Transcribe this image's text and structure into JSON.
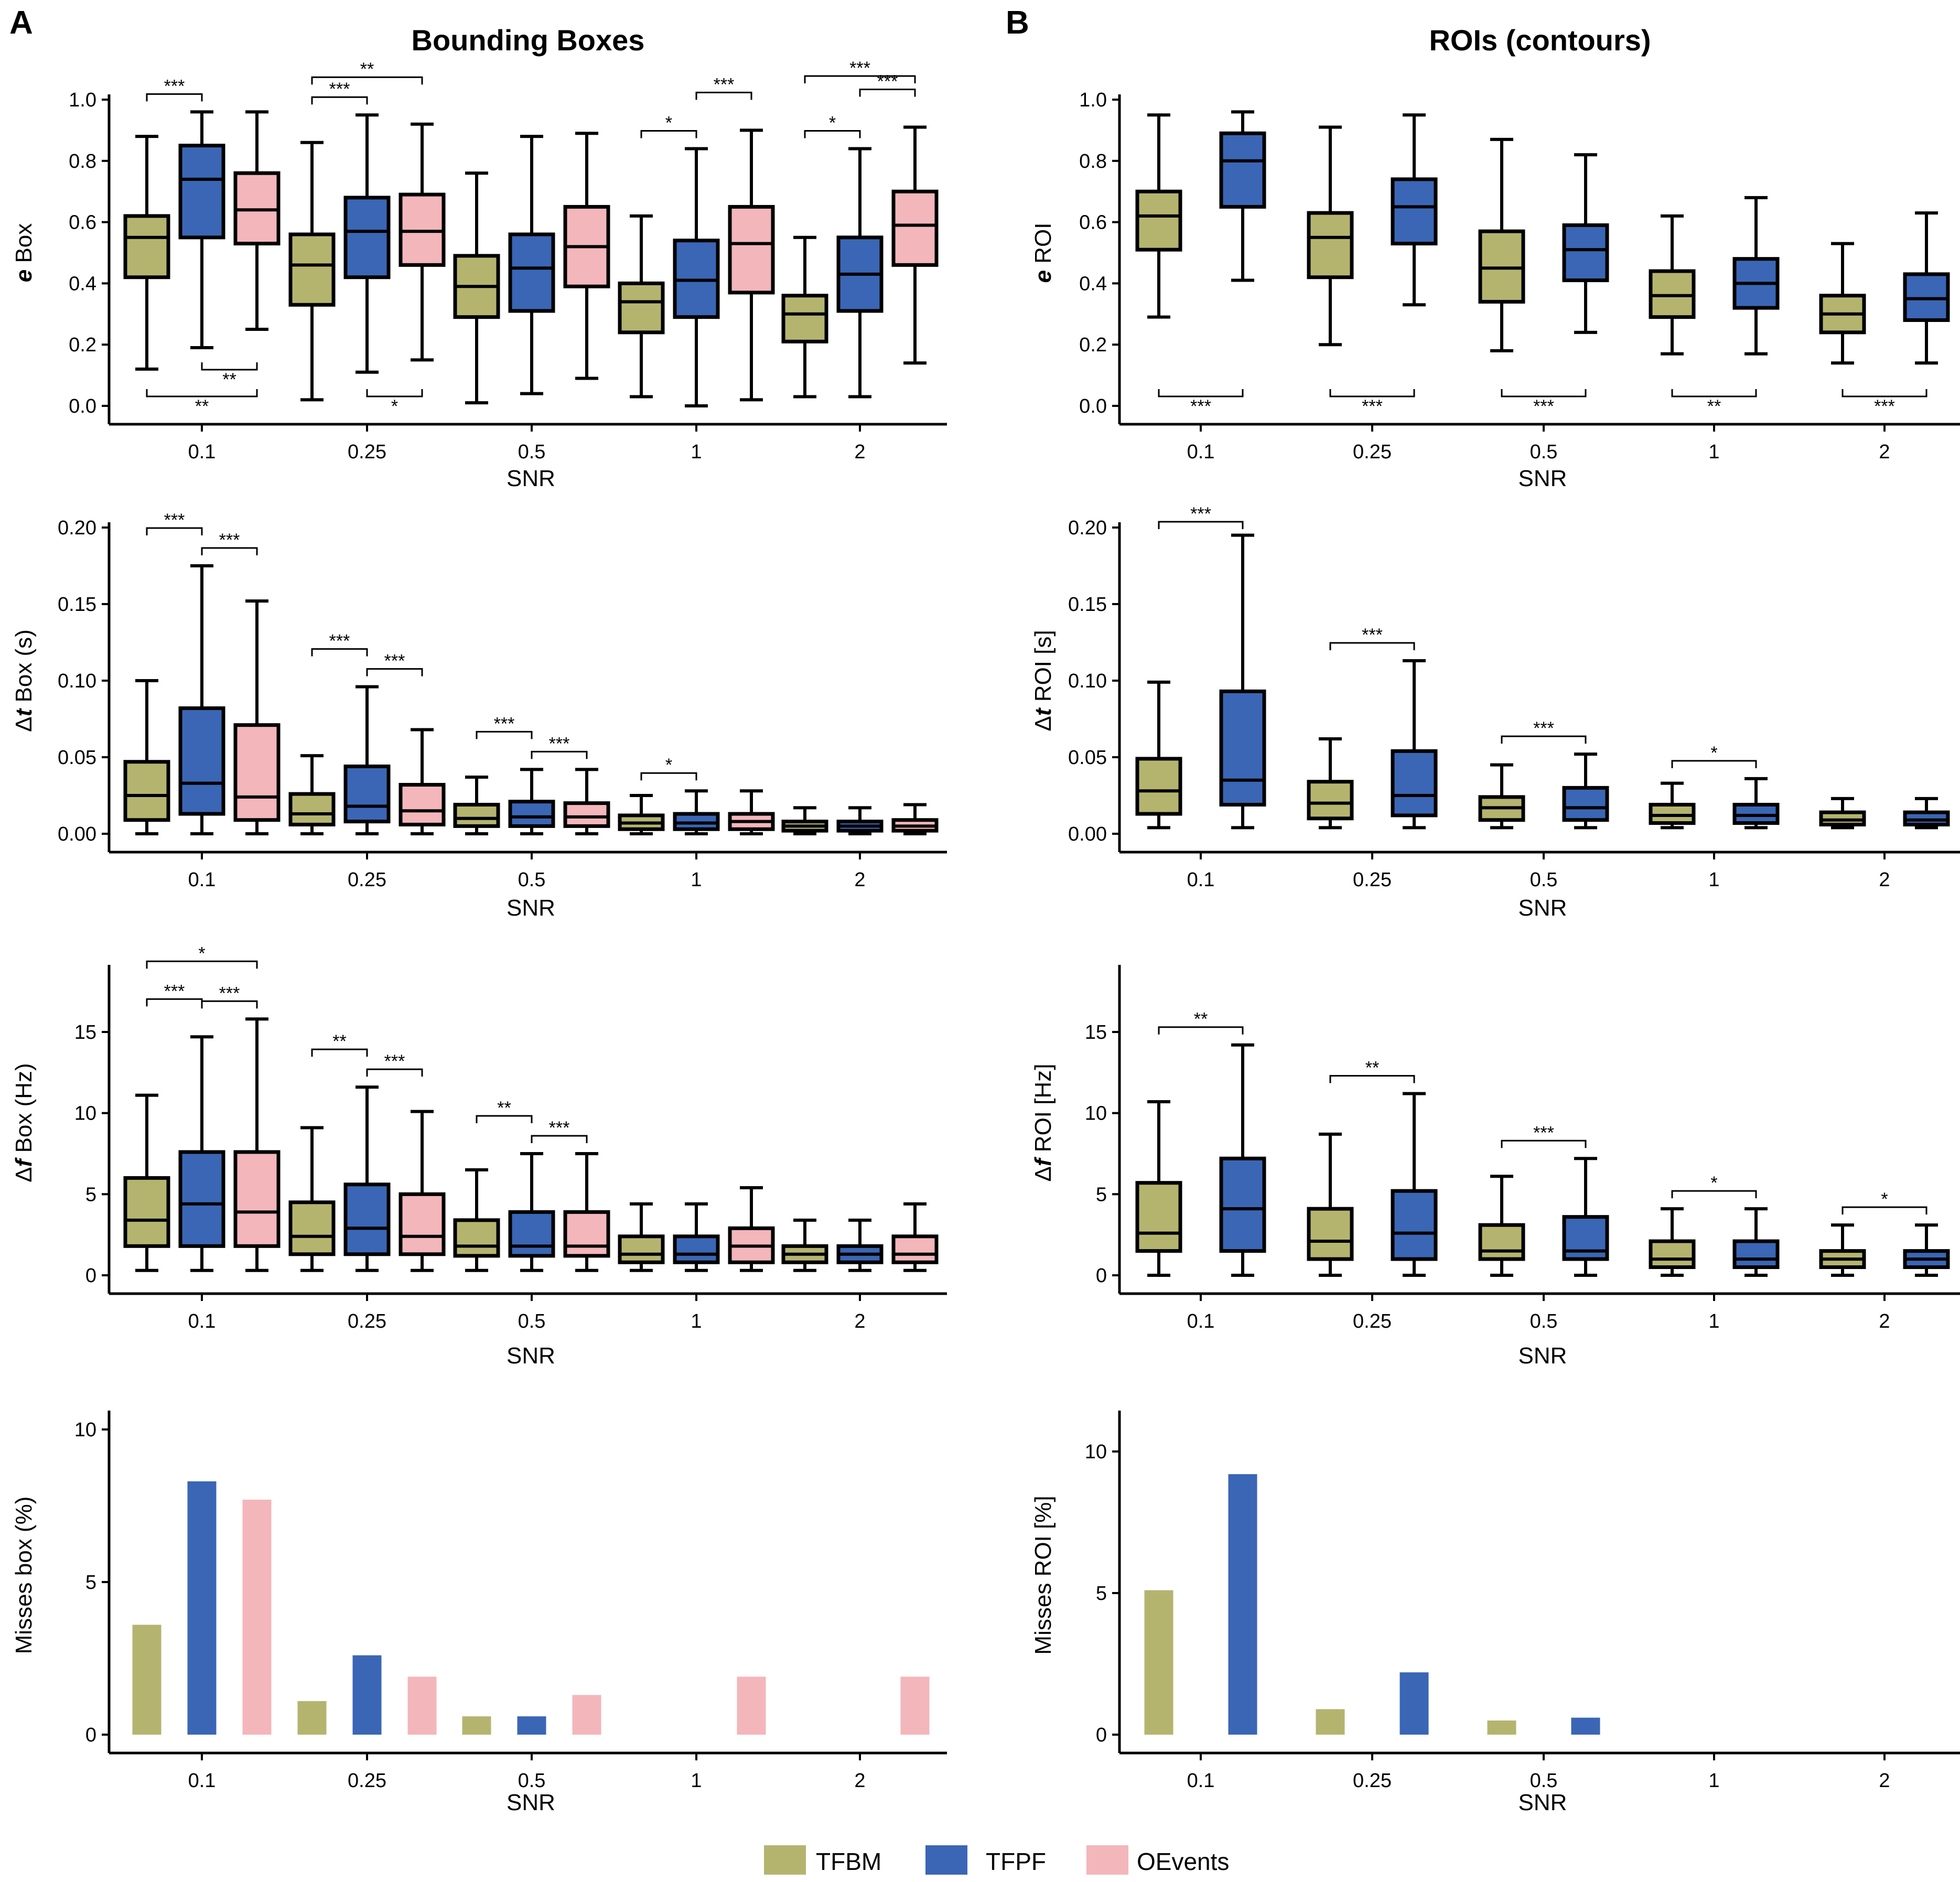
{
  "panels": {
    "A": {
      "letter": "A",
      "title": "Bounding Boxes"
    },
    "B": {
      "letter": "B",
      "title": "ROIs (contours)"
    }
  },
  "legend": [
    {
      "name": "TFBM",
      "color": "#b5b46f"
    },
    {
      "name": "TFPF",
      "color": "#3a66b5"
    },
    {
      "name": "OEvents",
      "color": "#f3b6bb"
    }
  ],
  "chart_data": [
    {
      "id": "A1",
      "type": "box",
      "panel": "A",
      "ylabel": "e Box",
      "ylabel_italic": "e",
      "ylabel_rest": " Box",
      "xlabel": "SNR",
      "categories": [
        "0.1",
        "0.25",
        "0.5",
        "1",
        "2"
      ],
      "yticks": [
        "0.0",
        "0.2",
        "0.4",
        "0.6",
        "0.8",
        "1.0"
      ],
      "ylim": [
        0,
        1.0
      ],
      "series_names": [
        "TFBM",
        "TFPF",
        "OEvents"
      ],
      "boxes": [
        [
          [
            0.12,
            0.42,
            0.55,
            0.62,
            0.88
          ],
          [
            0.19,
            0.55,
            0.74,
            0.85,
            0.96
          ],
          [
            0.25,
            0.53,
            0.64,
            0.76,
            0.96
          ]
        ],
        [
          [
            0.02,
            0.33,
            0.46,
            0.56,
            0.86
          ],
          [
            0.11,
            0.42,
            0.57,
            0.68,
            0.95
          ],
          [
            0.15,
            0.46,
            0.57,
            0.69,
            0.92
          ]
        ],
        [
          [
            0.01,
            0.29,
            0.39,
            0.49,
            0.76
          ],
          [
            0.04,
            0.31,
            0.45,
            0.56,
            0.88
          ],
          [
            0.09,
            0.39,
            0.52,
            0.65,
            0.89
          ]
        ],
        [
          [
            0.03,
            0.24,
            0.34,
            0.4,
            0.62
          ],
          [
            0.0,
            0.29,
            0.41,
            0.54,
            0.84
          ],
          [
            0.02,
            0.37,
            0.53,
            0.65,
            0.9
          ]
        ],
        [
          [
            0.03,
            0.21,
            0.3,
            0.36,
            0.55
          ],
          [
            0.03,
            0.31,
            0.43,
            0.55,
            0.84
          ],
          [
            0.14,
            0.46,
            0.59,
            0.7,
            0.91
          ]
        ]
      ],
      "sig_above": [
        {
          "group": 0,
          "from": 0,
          "to": 1,
          "label": "***",
          "level": 0
        },
        {
          "group": 1,
          "from": 0,
          "to": 1,
          "label": "***",
          "level": 0
        },
        {
          "group": 1,
          "from": 0,
          "to": 2,
          "label": "**",
          "level": 1
        },
        {
          "group": 3,
          "from": 0,
          "to": 1,
          "label": "*",
          "level": 0
        },
        {
          "group": 3,
          "from": 1,
          "to": 2,
          "label": "***",
          "level": 1
        },
        {
          "group": 4,
          "from": 0,
          "to": 1,
          "label": "*",
          "level": 0
        },
        {
          "group": 4,
          "from": 1,
          "to": 2,
          "label": "***",
          "level": 1
        },
        {
          "group": 4,
          "from": 0,
          "to": 2,
          "label": "***",
          "level": 2
        }
      ],
      "sig_below": [
        {
          "group": 0,
          "from": 1,
          "to": 2,
          "label": "**",
          "level": 0
        },
        {
          "group": 0,
          "from": 0,
          "to": 2,
          "label": "**",
          "level": 1
        },
        {
          "group": 1,
          "from": 1,
          "to": 2,
          "label": "*",
          "level": 1
        }
      ]
    },
    {
      "id": "B1",
      "type": "box",
      "panel": "B",
      "ylabel": "e ROI",
      "ylabel_italic": "e",
      "ylabel_rest": " ROI",
      "xlabel": "SNR",
      "categories": [
        "0.1",
        "0.25",
        "0.5",
        "1",
        "2"
      ],
      "yticks": [
        "0.0",
        "0.2",
        "0.4",
        "0.6",
        "0.8",
        "1.0"
      ],
      "ylim": [
        0,
        1.0
      ],
      "series_names": [
        "TFBM",
        "TFPF"
      ],
      "boxes": [
        [
          [
            0.29,
            0.51,
            0.62,
            0.7,
            0.95
          ],
          [
            0.41,
            0.65,
            0.8,
            0.89,
            0.96
          ]
        ],
        [
          [
            0.2,
            0.42,
            0.55,
            0.63,
            0.91
          ],
          [
            0.33,
            0.53,
            0.65,
            0.74,
            0.95
          ]
        ],
        [
          [
            0.18,
            0.34,
            0.45,
            0.57,
            0.87
          ],
          [
            0.24,
            0.41,
            0.51,
            0.59,
            0.82
          ]
        ],
        [
          [
            0.17,
            0.29,
            0.36,
            0.44,
            0.62
          ],
          [
            0.17,
            0.32,
            0.4,
            0.48,
            0.68
          ]
        ],
        [
          [
            0.14,
            0.24,
            0.3,
            0.36,
            0.53
          ],
          [
            0.14,
            0.28,
            0.35,
            0.43,
            0.63
          ]
        ]
      ],
      "sig_above": [],
      "sig_below": [
        {
          "group": 0,
          "from": 0,
          "to": 1,
          "label": "***",
          "level": 0
        },
        {
          "group": 1,
          "from": 0,
          "to": 1,
          "label": "***",
          "level": 0
        },
        {
          "group": 2,
          "from": 0,
          "to": 1,
          "label": "***",
          "level": 0
        },
        {
          "group": 3,
          "from": 0,
          "to": 1,
          "label": "**",
          "level": 0
        },
        {
          "group": 4,
          "from": 0,
          "to": 1,
          "label": "***",
          "level": 0
        }
      ]
    },
    {
      "id": "A2",
      "type": "box",
      "panel": "A",
      "ylabel": "Δt Box (s)",
      "ylabel_pre": "Δ",
      "ylabel_italic": "t",
      "ylabel_rest": " Box (s)",
      "xlabel": "SNR",
      "categories": [
        "0.1",
        "0.25",
        "0.5",
        "1",
        "2"
      ],
      "yticks": [
        "0.00",
        "0.05",
        "0.10",
        "0.15",
        "0.20"
      ],
      "ylim": [
        0,
        0.2
      ],
      "series_names": [
        "TFBM",
        "TFPF",
        "OEvents"
      ],
      "boxes": [
        [
          [
            0.0,
            0.009,
            0.025,
            0.047,
            0.1
          ],
          [
            0.0,
            0.013,
            0.033,
            0.082,
            0.175
          ],
          [
            0.0,
            0.009,
            0.024,
            0.071,
            0.152
          ]
        ],
        [
          [
            0.0,
            0.006,
            0.013,
            0.026,
            0.051
          ],
          [
            0.0,
            0.008,
            0.018,
            0.044,
            0.096
          ],
          [
            0.0,
            0.006,
            0.015,
            0.032,
            0.068
          ]
        ],
        [
          [
            0.0,
            0.005,
            0.01,
            0.019,
            0.037
          ],
          [
            0.0,
            0.005,
            0.011,
            0.021,
            0.042
          ],
          [
            0.0,
            0.005,
            0.011,
            0.02,
            0.042
          ]
        ],
        [
          [
            0.0,
            0.003,
            0.007,
            0.012,
            0.025
          ],
          [
            0.0,
            0.003,
            0.007,
            0.013,
            0.028
          ],
          [
            0.0,
            0.003,
            0.008,
            0.013,
            0.028
          ]
        ],
        [
          [
            0.0,
            0.002,
            0.005,
            0.008,
            0.017
          ],
          [
            0.0,
            0.002,
            0.005,
            0.008,
            0.017
          ],
          [
            0.0,
            0.002,
            0.005,
            0.009,
            0.019
          ]
        ]
      ],
      "sig_above": [
        {
          "group": 0,
          "from": 0,
          "to": 1,
          "label": "***",
          "level": 1
        },
        {
          "group": 0,
          "from": 1,
          "to": 2,
          "label": "***",
          "level": 0
        },
        {
          "group": 1,
          "from": 0,
          "to": 1,
          "label": "***",
          "level": 1
        },
        {
          "group": 1,
          "from": 1,
          "to": 2,
          "label": "***",
          "level": 0
        },
        {
          "group": 2,
          "from": 0,
          "to": 1,
          "label": "***",
          "level": 1
        },
        {
          "group": 2,
          "from": 1,
          "to": 2,
          "label": "***",
          "level": 0
        },
        {
          "group": 3,
          "from": 0,
          "to": 1,
          "label": "*",
          "level": 0
        }
      ],
      "sig_below": []
    },
    {
      "id": "B2",
      "type": "box",
      "panel": "B",
      "ylabel": "Δt ROI [s]",
      "ylabel_pre": "Δ",
      "ylabel_italic": "t",
      "ylabel_rest": " ROI [s]",
      "xlabel": "SNR",
      "categories": [
        "0.1",
        "0.25",
        "0.5",
        "1",
        "2"
      ],
      "yticks": [
        "0.00",
        "0.05",
        "0.10",
        "0.15",
        "0.20"
      ],
      "ylim": [
        0,
        0.2
      ],
      "series_names": [
        "TFBM",
        "TFPF"
      ],
      "boxes": [
        [
          [
            0.004,
            0.013,
            0.028,
            0.049,
            0.099
          ],
          [
            0.004,
            0.019,
            0.035,
            0.093,
            0.195
          ]
        ],
        [
          [
            0.004,
            0.01,
            0.02,
            0.034,
            0.062
          ],
          [
            0.004,
            0.012,
            0.025,
            0.054,
            0.113
          ]
        ],
        [
          [
            0.004,
            0.009,
            0.017,
            0.024,
            0.045
          ],
          [
            0.004,
            0.009,
            0.017,
            0.03,
            0.052
          ]
        ],
        [
          [
            0.004,
            0.007,
            0.012,
            0.019,
            0.033
          ],
          [
            0.004,
            0.007,
            0.012,
            0.019,
            0.036
          ]
        ],
        [
          [
            0.004,
            0.006,
            0.009,
            0.014,
            0.023
          ],
          [
            0.004,
            0.006,
            0.009,
            0.014,
            0.023
          ]
        ]
      ],
      "sig_above": [
        {
          "group": 0,
          "from": 0,
          "to": 1,
          "label": "***",
          "level": 0
        },
        {
          "group": 1,
          "from": 0,
          "to": 1,
          "label": "***",
          "level": 0
        },
        {
          "group": 2,
          "from": 0,
          "to": 1,
          "label": "***",
          "level": 0
        },
        {
          "group": 3,
          "from": 0,
          "to": 1,
          "label": "*",
          "level": 0
        }
      ],
      "sig_below": []
    },
    {
      "id": "A3",
      "type": "box",
      "panel": "A",
      "ylabel": "Δf Box (Hz)",
      "ylabel_pre": "Δ",
      "ylabel_italic": "f",
      "ylabel_rest": " Box (Hz)",
      "xlabel": "SNR",
      "categories": [
        "0.1",
        "0.25",
        "0.5",
        "1",
        "2"
      ],
      "yticks": [
        "0",
        "5",
        "10",
        "15"
      ],
      "ylim": [
        0,
        18
      ],
      "series_names": [
        "TFBM",
        "TFPF",
        "OEvents"
      ],
      "boxes": [
        [
          [
            0.3,
            1.8,
            3.4,
            6.0,
            11.1
          ],
          [
            0.3,
            1.8,
            4.4,
            7.6,
            14.7
          ],
          [
            0.3,
            1.8,
            3.9,
            7.6,
            15.8
          ]
        ],
        [
          [
            0.3,
            1.3,
            2.4,
            4.5,
            9.1
          ],
          [
            0.3,
            1.3,
            2.9,
            5.6,
            11.6
          ],
          [
            0.3,
            1.3,
            2.4,
            5.0,
            10.1
          ]
        ],
        [
          [
            0.3,
            1.2,
            1.8,
            3.4,
            6.5
          ],
          [
            0.3,
            1.2,
            1.8,
            3.9,
            7.5
          ],
          [
            0.3,
            1.2,
            1.8,
            3.9,
            7.5
          ]
        ],
        [
          [
            0.3,
            0.8,
            1.3,
            2.4,
            4.4
          ],
          [
            0.3,
            0.8,
            1.3,
            2.4,
            4.4
          ],
          [
            0.3,
            0.8,
            1.8,
            2.9,
            5.4
          ]
        ],
        [
          [
            0.3,
            0.8,
            1.3,
            1.8,
            3.4
          ],
          [
            0.3,
            0.8,
            1.3,
            1.8,
            3.4
          ],
          [
            0.3,
            0.8,
            1.3,
            2.4,
            4.4
          ]
        ]
      ],
      "sig_above": [
        {
          "group": 0,
          "from": 0,
          "to": 1,
          "label": "***",
          "level": 1
        },
        {
          "group": 0,
          "from": 1,
          "to": 2,
          "label": "***",
          "level": 0
        },
        {
          "group": 0,
          "from": 0,
          "to": 2,
          "label": "*",
          "level": 2
        },
        {
          "group": 1,
          "from": 0,
          "to": 1,
          "label": "**",
          "level": 1
        },
        {
          "group": 1,
          "from": 1,
          "to": 2,
          "label": "***",
          "level": 0
        },
        {
          "group": 2,
          "from": 0,
          "to": 1,
          "label": "**",
          "level": 1
        },
        {
          "group": 2,
          "from": 1,
          "to": 2,
          "label": "***",
          "level": 0
        }
      ],
      "sig_below": []
    },
    {
      "id": "B3",
      "type": "box",
      "panel": "B",
      "ylabel": "Δf ROI [Hz]",
      "ylabel_pre": "Δ",
      "ylabel_italic": "f",
      "ylabel_rest": " ROI [Hz]",
      "xlabel": "SNR",
      "categories": [
        "0.1",
        "0.25",
        "0.5",
        "1",
        "2"
      ],
      "yticks": [
        "0",
        "5",
        "10",
        "15"
      ],
      "ylim": [
        0,
        18
      ],
      "series_names": [
        "TFBM",
        "TFPF"
      ],
      "boxes": [
        [
          [
            0.0,
            1.5,
            2.6,
            5.7,
            10.7
          ],
          [
            0.0,
            1.5,
            4.1,
            7.2,
            14.2
          ]
        ],
        [
          [
            0.0,
            1.0,
            2.1,
            4.1,
            8.7
          ],
          [
            0.0,
            1.0,
            2.6,
            5.2,
            11.2
          ]
        ],
        [
          [
            0.0,
            1.0,
            1.5,
            3.1,
            6.1
          ],
          [
            0.0,
            1.0,
            1.5,
            3.6,
            7.2
          ]
        ],
        [
          [
            0.0,
            0.5,
            1.0,
            2.1,
            4.1
          ],
          [
            0.0,
            0.5,
            1.0,
            2.1,
            4.1
          ]
        ],
        [
          [
            0.0,
            0.5,
            1.0,
            1.5,
            3.1
          ],
          [
            0.0,
            0.5,
            1.0,
            1.5,
            3.1
          ]
        ]
      ],
      "sig_above": [
        {
          "group": 0,
          "from": 0,
          "to": 1,
          "label": "**",
          "level": 0
        },
        {
          "group": 1,
          "from": 0,
          "to": 1,
          "label": "**",
          "level": 0
        },
        {
          "group": 2,
          "from": 0,
          "to": 1,
          "label": "***",
          "level": 0
        },
        {
          "group": 3,
          "from": 0,
          "to": 1,
          "label": "*",
          "level": 0
        },
        {
          "group": 4,
          "from": 0,
          "to": 1,
          "label": "*",
          "level": 0
        }
      ],
      "sig_below": []
    },
    {
      "id": "A4",
      "type": "bar",
      "panel": "A",
      "ylabel": "Misses box (%)",
      "xlabel": "SNR",
      "categories": [
        "0.1",
        "0.25",
        "0.5",
        "1",
        "2"
      ],
      "yticks": [
        "0",
        "5",
        "10"
      ],
      "ylim": [
        0,
        10.5
      ],
      "series": [
        {
          "name": "TFBM",
          "values": [
            3.6,
            1.1,
            0.6,
            0.0,
            0.0
          ]
        },
        {
          "name": "TFPF",
          "values": [
            8.3,
            2.6,
            0.6,
            0.0,
            0.0
          ]
        },
        {
          "name": "OEvents",
          "values": [
            7.7,
            1.9,
            1.3,
            1.9,
            1.9
          ]
        }
      ]
    },
    {
      "id": "B4",
      "type": "bar",
      "panel": "B",
      "ylabel": "Misses ROI [%]",
      "xlabel": "SNR",
      "categories": [
        "0.1",
        "0.25",
        "0.5",
        "1",
        "2"
      ],
      "yticks": [
        "0",
        "5",
        "10"
      ],
      "ylim": [
        0,
        11
      ],
      "series": [
        {
          "name": "TFBM",
          "values": [
            5.1,
            0.9,
            0.5,
            0.0,
            0.0
          ]
        },
        {
          "name": "TFPF",
          "values": [
            9.2,
            2.2,
            0.6,
            0.0,
            0.0
          ]
        }
      ]
    }
  ]
}
